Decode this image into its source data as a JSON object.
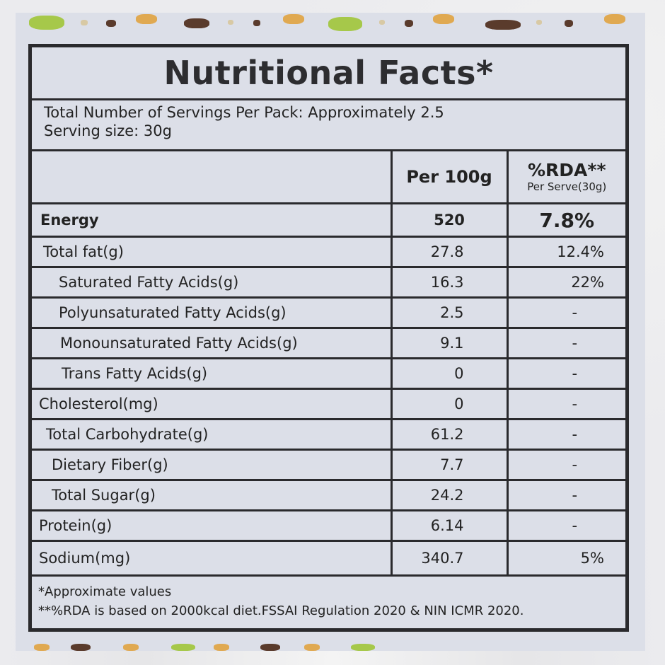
{
  "title": "Nutritional Facts*",
  "serving": {
    "servings_per_pack": "Total Number of Servings Per Pack: Approximately 2.5",
    "serving_size": "Serving size: 30g"
  },
  "table": {
    "headers": {
      "per100g": "Per 100g",
      "rda_title": "%RDA**",
      "rda_sub": "Per Serve(30g)"
    },
    "energy": {
      "label": "Energy",
      "per100g": "520",
      "rda": "7.8%"
    },
    "rows": [
      {
        "label": "Total fat(g)",
        "indent": 6,
        "per100g": "27.8",
        "rda": "12.4%"
      },
      {
        "label": "Saturated  Fatty Acids(g)",
        "indent": 28,
        "per100g": "16.3",
        "rda": "22%"
      },
      {
        "label": "Polyunsaturated Fatty Acids(g)",
        "indent": 28,
        "per100g": "2.5",
        "rda": "-"
      },
      {
        "label": "Monounsaturated Fatty Acids(g)",
        "indent": 30,
        "per100g": "9.1",
        "rda": "-"
      },
      {
        "label": "Trans Fatty Acids(g)",
        "indent": 32,
        "per100g": "0",
        "rda": "-"
      },
      {
        "label": "Cholesterol(mg)",
        "indent": 0,
        "per100g": "0",
        "rda": "-"
      },
      {
        "label": "Total Carbohydrate(g)",
        "indent": 10,
        "per100g": "61.2",
        "rda": "-"
      },
      {
        "label": "Dietary Fiber(g)",
        "indent": 18,
        "per100g": "7.7",
        "rda": "-"
      },
      {
        "label": "Total Sugar(g)",
        "indent": 18,
        "per100g": "24.2",
        "rda": "-"
      },
      {
        "label": "Protein(g)",
        "indent": 0,
        "per100g": "6.14",
        "rda": "-"
      },
      {
        "label": "Sodium(mg)",
        "indent": 0,
        "per100g": "340.7",
        "rda": "5%"
      }
    ]
  },
  "footnotes": {
    "approx": "*Approximate values",
    "rda_basis": "**%RDA is based on 2000kcal diet.FSSAI Regulation 2020 & NIN ICMR 2020."
  },
  "colors": {
    "panel": "#dcdfe8",
    "border": "#2a2a2d",
    "text": "#222222"
  }
}
